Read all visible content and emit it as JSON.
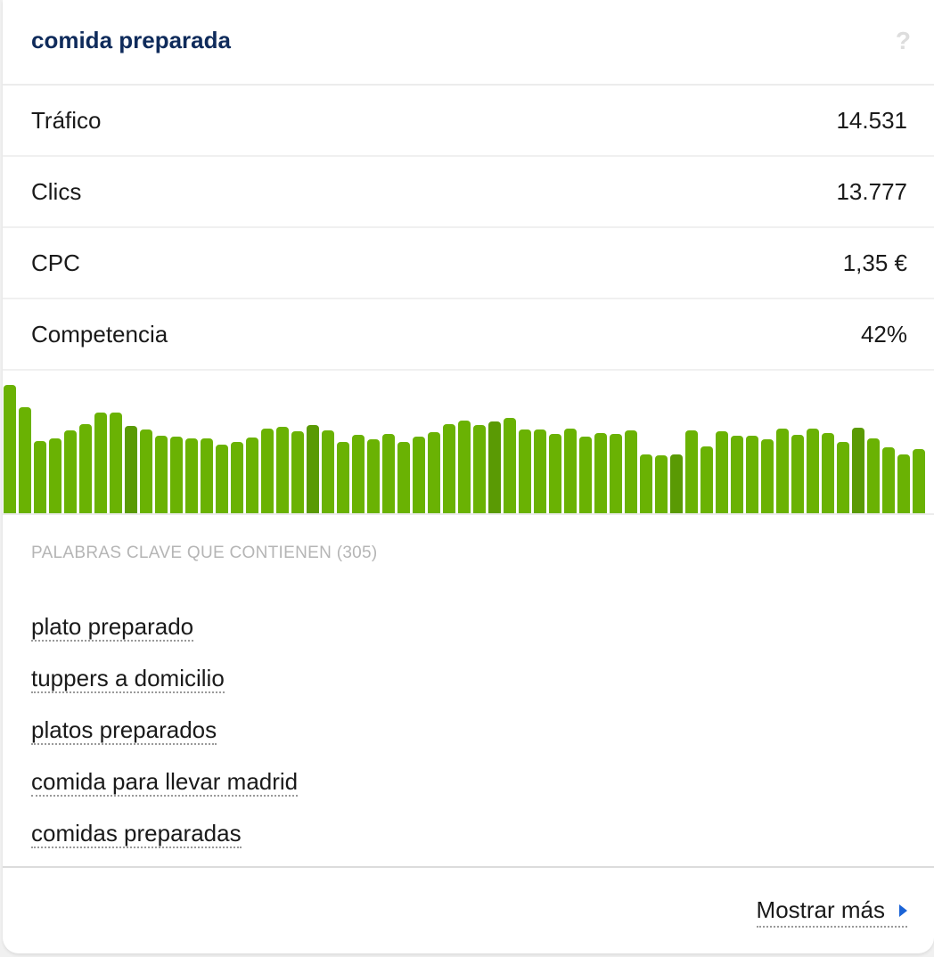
{
  "header": {
    "title": "comida preparada",
    "help_icon": "?"
  },
  "metrics": [
    {
      "label": "Tráfico",
      "value": "14.531"
    },
    {
      "label": "Clics",
      "value": "13.777"
    },
    {
      "label": "CPC",
      "value": "1,35 €"
    },
    {
      "label": "Competencia",
      "value": "42%"
    }
  ],
  "colors": {
    "bar": "#6ab203",
    "bar_highlight": "#5a9a04",
    "title": "#0f2b5b",
    "link_arrow": "#1a63d6"
  },
  "chart_data": {
    "type": "bar",
    "title": "",
    "xlabel": "",
    "ylabel": "",
    "grid": false,
    "note": "Relative trend sparkline, heights in px (no axis shown); highlighted bars every 12th (indices 8,20,32,44,56)",
    "values": [
      144,
      119,
      81,
      84,
      93,
      100,
      113,
      113,
      98,
      94,
      87,
      86,
      84,
      84,
      77,
      80,
      85,
      95,
      97,
      92,
      99,
      93,
      80,
      88,
      83,
      89,
      80,
      86,
      91,
      100,
      104,
      99,
      103,
      107,
      94,
      94,
      89,
      95,
      86,
      90,
      89,
      93,
      66,
      65,
      66,
      93,
      75,
      92,
      87,
      87,
      83,
      95,
      88,
      95,
      90,
      80,
      96,
      84,
      74,
      66,
      72
    ],
    "highlight_indices": [
      8,
      20,
      32,
      44,
      56
    ]
  },
  "keywords": {
    "section_label": "PALABRAS CLAVE QUE CONTIENEN (305)",
    "items": [
      "plato preparado",
      "tuppers a domicilio",
      "platos preparados",
      "comida para llevar madrid",
      "comidas preparadas"
    ]
  },
  "footer": {
    "show_more_label": "Mostrar más"
  }
}
